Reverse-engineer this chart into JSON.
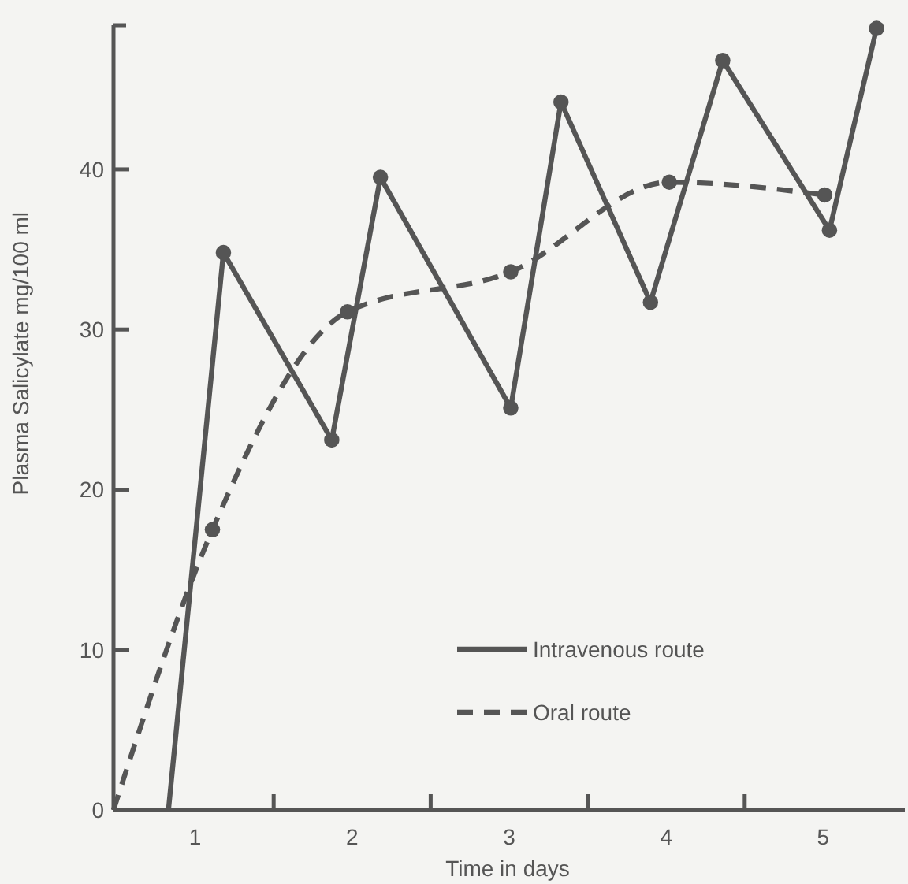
{
  "chart_data": {
    "type": "line",
    "xlabel": "Time in days",
    "ylabel": "Plasma Salicylate mg/100 ml",
    "xlim": [
      0.48,
      5.52
    ],
    "ylim": [
      0,
      49
    ],
    "xticks": [
      1,
      {
        "value": 1.5,
        "label": null
      },
      2,
      {
        "value": 2.5,
        "label": null
      },
      3,
      {
        "value": 3.5,
        "label": null
      },
      4,
      {
        "value": 4.5,
        "label": null
      },
      5
    ],
    "yticks": [
      0,
      10,
      20,
      30,
      40
    ],
    "legend": "bottom right",
    "marker": "circle",
    "grid": false,
    "series": [
      {
        "name": "Intravenous route",
        "color": "#555555",
        "line_style": "solid",
        "x": [
          0.83,
          1.18,
          1.87,
          2.18,
          3.01,
          3.33,
          3.9,
          4.36,
          5.04,
          5.34
        ],
        "values": [
          0,
          34.8,
          23.1,
          39.5,
          25.1,
          44.2,
          31.7,
          46.8,
          36.2,
          48.8
        ]
      },
      {
        "name": "Oral route",
        "color": "#555555",
        "line_style": "dashed",
        "x": [
          0.48,
          1.11,
          1.97,
          3.01,
          4.02,
          5.01
        ],
        "values": [
          0,
          17.5,
          31.1,
          33.6,
          39.2,
          38.4
        ]
      }
    ]
  }
}
